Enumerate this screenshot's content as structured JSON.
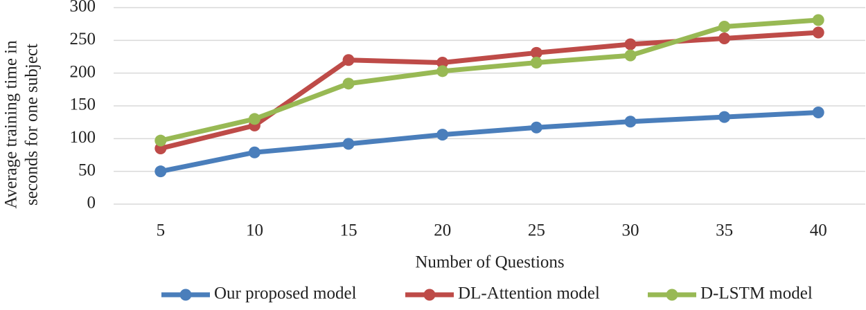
{
  "chart_data": {
    "type": "line",
    "ylabel": [
      "Average training time  in",
      "seconds  for one subject"
    ],
    "xlabel": "Number of Questions",
    "categories": [
      5,
      10,
      15,
      20,
      25,
      30,
      35,
      40
    ],
    "series": [
      {
        "name": "Our proposed model",
        "color": "#4a7ebb",
        "values": [
          50,
          79,
          92,
          106,
          117,
          126,
          133,
          140
        ]
      },
      {
        "name": "DL-Attention model",
        "color": "#be4b48",
        "values": [
          85,
          120,
          220,
          216,
          231,
          244,
          253,
          262
        ]
      },
      {
        "name": "D-LSTM model",
        "color": "#98b954",
        "values": [
          97,
          130,
          184,
          203,
          216,
          227,
          271,
          281
        ]
      }
    ],
    "ylim": [
      0,
      300
    ],
    "yticks": [
      0,
      50,
      100,
      150,
      200,
      250,
      300
    ],
    "grid": true,
    "legend": "bottom"
  }
}
